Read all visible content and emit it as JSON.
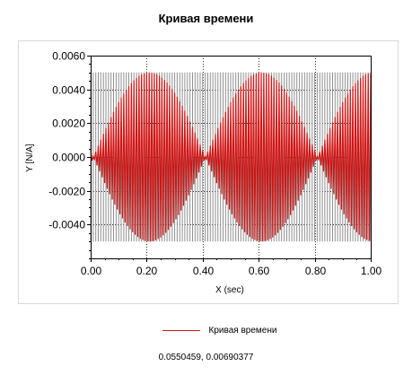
{
  "chart_data": {
    "type": "line",
    "title": "Кривая времени",
    "xlabel": "X (sec)",
    "ylabel": "Y [N/A]",
    "xlim": [
      0.0,
      1.0
    ],
    "ylim": [
      -0.006,
      0.006
    ],
    "x_ticks": [
      "0.00",
      "0.20",
      "0.40",
      "0.60",
      "0.80",
      "1.00"
    ],
    "y_ticks": [
      "0.0060",
      "0.0040",
      "0.0020",
      "0.0000",
      "-0.0020",
      "-0.0040"
    ],
    "y_tick_values": [
      0.006,
      0.004,
      0.002,
      0.0,
      -0.002,
      -0.004
    ],
    "grid": true,
    "legend_position": "bottom",
    "series": [
      {
        "name": "Кривая времени",
        "color": "#d01515",
        "amplitude": 0.005,
        "carrier_cycles": 110,
        "envelope_period": 0.4,
        "envelope_peak_x": 0.21
      }
    ]
  },
  "readout": "0.0550459, 0.00690377"
}
